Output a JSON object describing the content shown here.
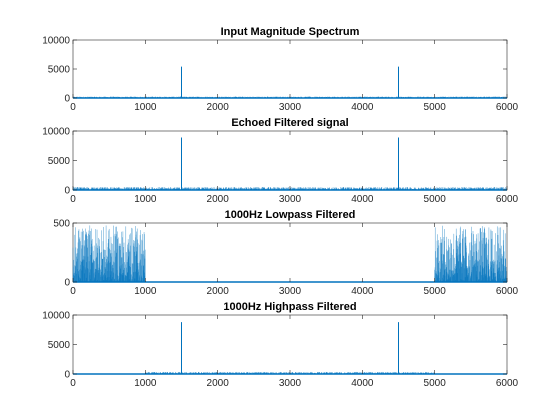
{
  "chart_data": [
    {
      "type": "line",
      "title": "Input Magnitude Spectrum",
      "xlim": [
        0,
        6000
      ],
      "ylim": [
        0,
        10000
      ],
      "xticks": [
        "0",
        "1000",
        "2000",
        "3000",
        "4000",
        "5000",
        "6000"
      ],
      "yticks": [
        "0",
        "5000",
        "10000"
      ],
      "series": [
        {
          "color": "#0072bd",
          "noise_floor": 250,
          "bands": [
            [
              0,
              6000,
              250
            ]
          ],
          "peaks": [
            {
              "x": 1500,
              "y": 5400
            },
            {
              "x": 4500,
              "y": 5400
            }
          ]
        }
      ]
    },
    {
      "type": "line",
      "title": "Echoed Filtered signal",
      "xlim": [
        0,
        6000
      ],
      "ylim": [
        0,
        10000
      ],
      "xticks": [
        "0",
        "1000",
        "2000",
        "3000",
        "4000",
        "5000",
        "6000"
      ],
      "yticks": [
        "0",
        "5000",
        "10000"
      ],
      "series": [
        {
          "color": "#0072bd",
          "bands": [
            [
              0,
              6000,
              500
            ]
          ],
          "peaks": [
            {
              "x": 1500,
              "y": 8900
            },
            {
              "x": 4500,
              "y": 8900
            }
          ]
        }
      ]
    },
    {
      "type": "line",
      "title": "1000Hz Lowpass Filtered",
      "xlim": [
        0,
        6000
      ],
      "ylim": [
        0,
        500
      ],
      "xticks": [
        "0",
        "1000",
        "2000",
        "3000",
        "4000",
        "5000",
        "6000"
      ],
      "yticks": [
        "0",
        "500"
      ],
      "series": [
        {
          "color": "#0072bd",
          "bands": [
            [
              0,
              1000,
              480
            ],
            [
              1000,
              5000,
              4
            ],
            [
              5000,
              6000,
              480
            ]
          ],
          "peaks": []
        }
      ]
    },
    {
      "type": "line",
      "title": "1000Hz Highpass Filtered",
      "xlim": [
        0,
        6000
      ],
      "ylim": [
        0,
        10000
      ],
      "xticks": [
        "0",
        "1000",
        "2000",
        "3000",
        "4000",
        "5000",
        "6000"
      ],
      "yticks": [
        "0",
        "5000",
        "10000"
      ],
      "series": [
        {
          "color": "#0072bd",
          "bands": [
            [
              0,
              1000,
              40
            ],
            [
              1000,
              5000,
              350
            ],
            [
              5000,
              6000,
              40
            ]
          ],
          "peaks": [
            {
              "x": 1500,
              "y": 8800
            },
            {
              "x": 4500,
              "y": 8800
            }
          ]
        }
      ]
    }
  ]
}
